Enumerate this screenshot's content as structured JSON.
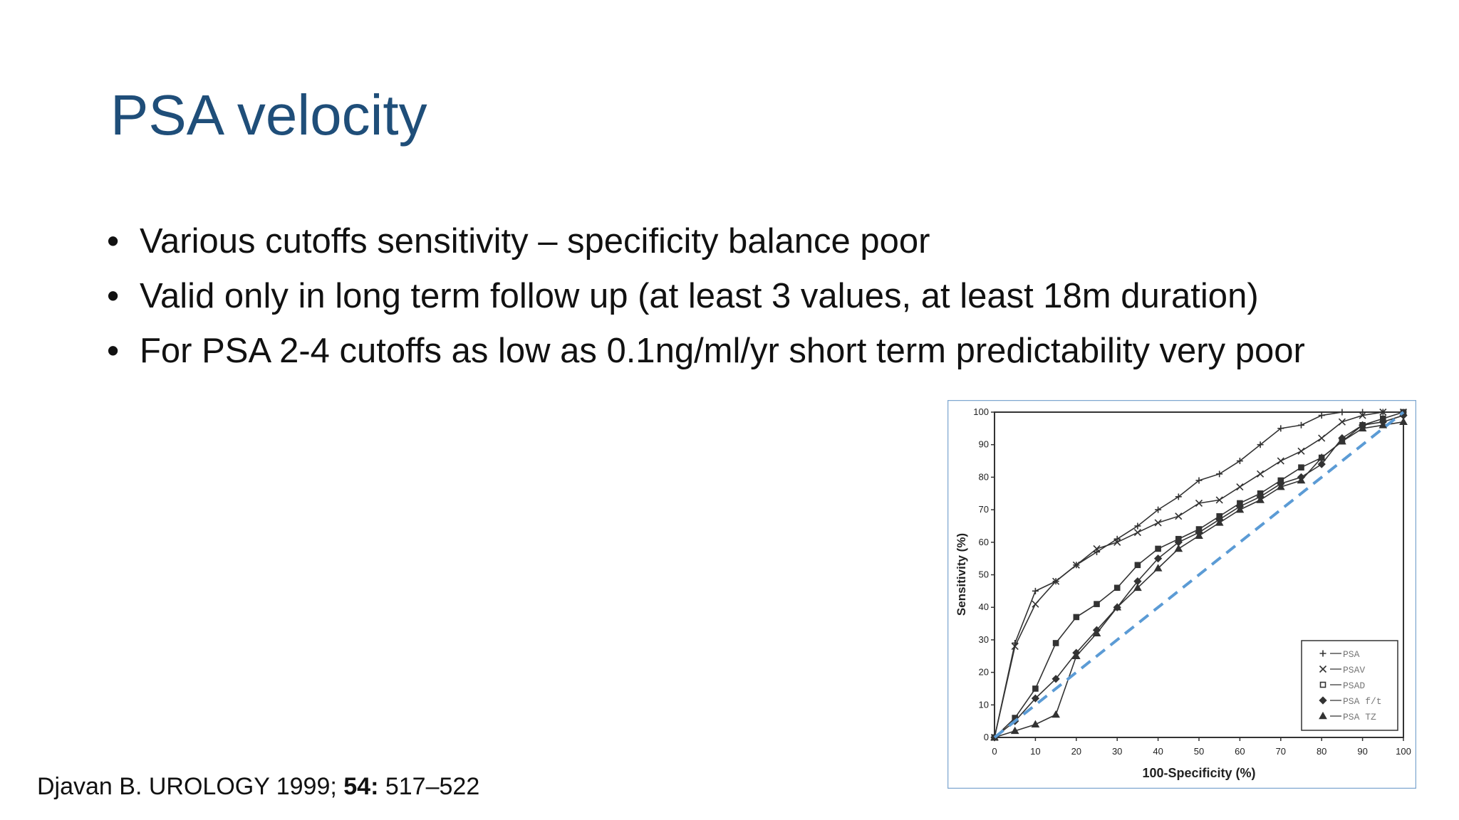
{
  "slide": {
    "title": "PSA velocity",
    "bullets": [
      "Various cutoffs sensitivity – specificity balance poor",
      "Valid only in long term follow up (at least 3 values, at least 18m duration)",
      "For PSA 2-4 cutoffs as low as 0.1ng/ml/yr short term predictability very poor"
    ],
    "citation": {
      "source": "Djavan B. UROLOGY 1999;",
      "volume": "54:",
      "pages": "517–522"
    }
  },
  "chart_data": {
    "type": "line",
    "xlabel": "100-Specificity (%)",
    "ylabel": "Sensitivity (%)",
    "x": [
      0,
      5,
      10,
      15,
      20,
      25,
      30,
      35,
      40,
      45,
      50,
      55,
      60,
      65,
      70,
      75,
      80,
      85,
      90,
      95,
      100
    ],
    "series": [
      {
        "name": "PSA",
        "color": "#333333",
        "marker": "plus",
        "values": [
          0,
          29,
          45,
          48,
          53,
          57,
          61,
          65,
          70,
          74,
          79,
          81,
          85,
          90,
          95,
          96,
          99,
          100,
          100,
          100,
          100
        ]
      },
      {
        "name": "PSAV",
        "color": "#333333",
        "marker": "cross",
        "values": [
          0,
          28,
          41,
          48,
          53,
          58,
          60,
          63,
          66,
          68,
          72,
          73,
          77,
          81,
          85,
          88,
          92,
          97,
          99,
          100,
          100
        ]
      },
      {
        "name": "PSAD",
        "color": "#333333",
        "marker": "square",
        "values": [
          0,
          6,
          15,
          29,
          37,
          41,
          46,
          53,
          58,
          61,
          64,
          68,
          72,
          75,
          79,
          83,
          86,
          91,
          96,
          98,
          100
        ]
      },
      {
        "name": "PSA f/t",
        "color": "#333333",
        "marker": "diamond",
        "values": [
          0,
          5,
          12,
          18,
          26,
          33,
          40,
          48,
          55,
          60,
          63,
          67,
          71,
          74,
          78,
          80,
          84,
          92,
          96,
          97,
          99
        ]
      },
      {
        "name": "PSA TZ",
        "color": "#333333",
        "marker": "triangle",
        "values": [
          0,
          2,
          4,
          7,
          25,
          32,
          40,
          46,
          52,
          58,
          62,
          66,
          70,
          73,
          77,
          79,
          86,
          91,
          95,
          96,
          97
        ]
      }
    ],
    "xlim": [
      0,
      100
    ],
    "ylim": [
      0,
      100
    ],
    "xticks": [
      0,
      10,
      20,
      30,
      40,
      50,
      60,
      70,
      80,
      90,
      100
    ],
    "yticks": [
      0,
      10,
      20,
      30,
      40,
      50,
      60,
      70,
      80,
      90,
      100
    ],
    "reference_color": "#5b9bd5",
    "legend": "lower right"
  }
}
